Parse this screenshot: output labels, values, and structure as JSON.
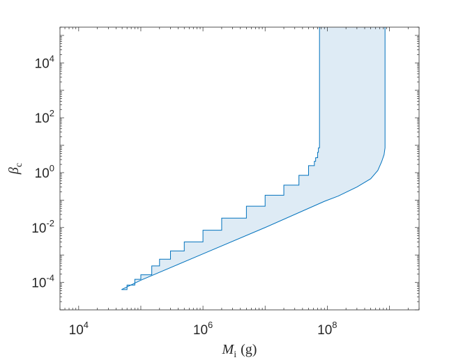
{
  "chart_data": {
    "type": "area",
    "xscale": "log",
    "yscale": "log",
    "xlim": [
      5000,
      3000000000
    ],
    "ylim": [
      1e-05,
      200000
    ],
    "grid": false,
    "box": true,
    "xlabel": {
      "symbol": "M",
      "subscript": "i",
      "unit": "(g)"
    },
    "ylabel": {
      "symbol": "β",
      "subscript": "c"
    },
    "xticks": [
      {
        "value": 10000,
        "base": "10",
        "exp": "4"
      },
      {
        "value": 1000000,
        "base": "10",
        "exp": "6"
      },
      {
        "value": 100000000,
        "base": "10",
        "exp": "8"
      }
    ],
    "yticks": [
      {
        "value": 0.0001,
        "base": "10",
        "exp": "-4"
      },
      {
        "value": 0.01,
        "base": "10",
        "exp": "-2"
      },
      {
        "value": 1,
        "base": "10",
        "exp": "0"
      },
      {
        "value": 100,
        "base": "10",
        "exp": "2"
      },
      {
        "value": 10000,
        "base": "10",
        "exp": "4"
      }
    ],
    "fill_color": "#deebf5",
    "line_color": "#0072bd",
    "series": [
      {
        "role": "upper",
        "x": [
          49000,
          60000,
          80000,
          100000,
          150000,
          200000,
          300000,
          500000,
          1000000,
          2000000,
          5000000,
          10000000,
          20000000,
          35000000,
          50000000,
          62000000,
          65000000,
          70000000,
          72000000,
          75000000,
          75000000
        ],
        "y": [
          5.5e-05,
          8e-05,
          0.00013,
          0.00019,
          0.0004,
          0.0007,
          0.0014,
          0.003,
          0.008,
          0.022,
          0.06,
          0.15,
          0.35,
          0.8,
          1.8,
          2.6,
          3.5,
          5.5,
          8,
          12,
          200000
        ]
      },
      {
        "role": "lower",
        "x": [
          49000,
          100000,
          1000000,
          10000000,
          90000000,
          150000000,
          300000000,
          500000000,
          650000000,
          750000000,
          820000000,
          850000000,
          850000000
        ],
        "y": [
          5.5e-05,
          0.00012,
          0.0011,
          0.01,
          0.09,
          0.14,
          0.3,
          0.6,
          1.2,
          2.5,
          4.5,
          8,
          200000
        ]
      }
    ]
  }
}
